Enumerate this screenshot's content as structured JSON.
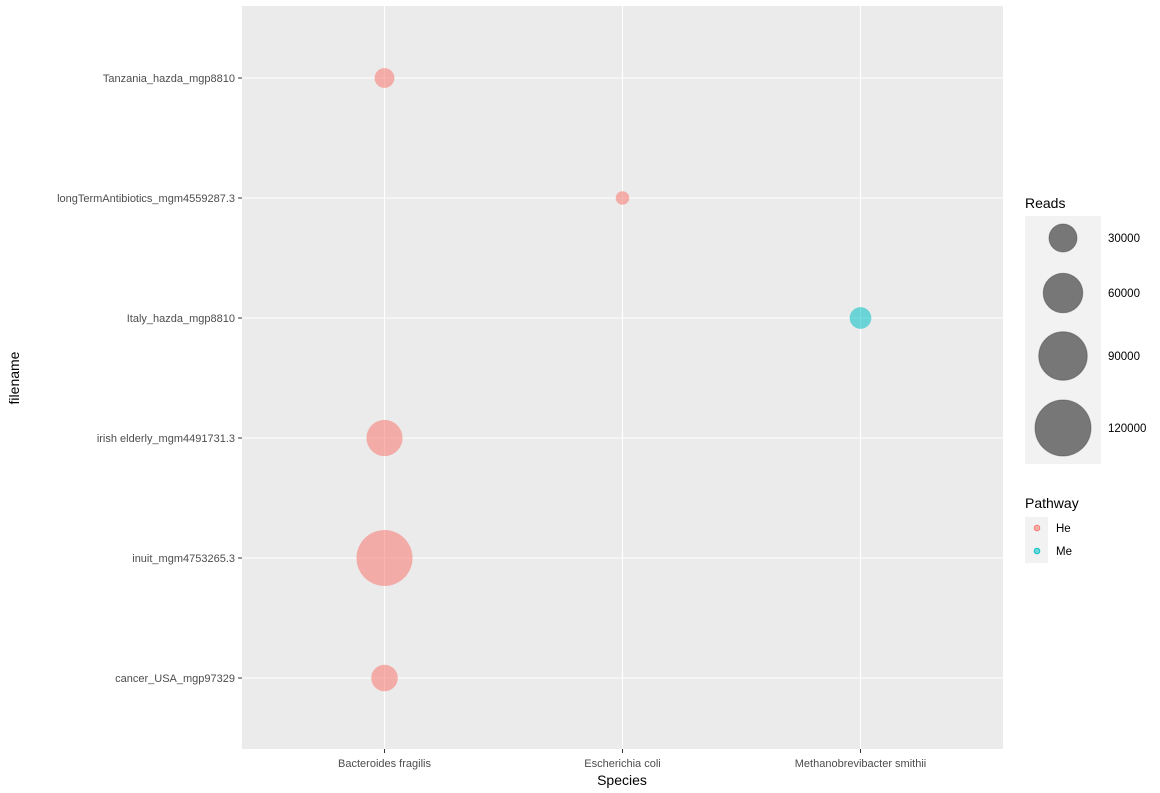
{
  "chart_data": {
    "type": "scatter",
    "xlabel": "Species",
    "ylabel": "filename",
    "x_categories": [
      "Bacteroides fragilis",
      "Escherichia coli",
      "Methanobrevibacter smithii"
    ],
    "y_categories": [
      "cancer_USA_mgp97329",
      "inuit_mgm4753265.3",
      "irish elderly_mgm4491731.3",
      "Italy_hazda_mgp8810",
      "longTermAntibiotics_mgm4559287.3",
      "Tanzania_hazda_mgp8810"
    ],
    "points": [
      {
        "x": "Bacteroides fragilis",
        "y": "Tanzania_hazda_mgp8810",
        "reads": 15000,
        "pathway": "He"
      },
      {
        "x": "Escherichia coli",
        "y": "longTermAntibiotics_mgm4559287.3",
        "reads": 7000,
        "pathway": "He"
      },
      {
        "x": "Methanobrevibacter smithii",
        "y": "Italy_hazda_mgp8810",
        "reads": 18000,
        "pathway": "Me"
      },
      {
        "x": "Bacteroides fragilis",
        "y": "irish elderly_mgm4491731.3",
        "reads": 50000,
        "pathway": "He"
      },
      {
        "x": "Bacteroides fragilis",
        "y": "inuit_mgm4753265.3",
        "reads": 120000,
        "pathway": "He"
      },
      {
        "x": "Bacteroides fragilis",
        "y": "cancer_USA_mgp97329",
        "reads": 27000,
        "pathway": "He"
      }
    ],
    "size_legend": {
      "title": "Reads",
      "breaks": [
        30000,
        60000,
        90000,
        120000
      ],
      "labels": [
        "30000",
        "60000",
        "90000",
        "120000"
      ]
    },
    "color_legend": {
      "title": "Pathway",
      "entries": [
        {
          "label": "He",
          "color": "#F8766D"
        },
        {
          "label": "Me",
          "color": "#00BFC4"
        }
      ]
    },
    "grid": true,
    "panel_background": "#EBEBEB",
    "grid_color": "#FFFFFF",
    "size_legend_fill": "#4d4d4d"
  }
}
